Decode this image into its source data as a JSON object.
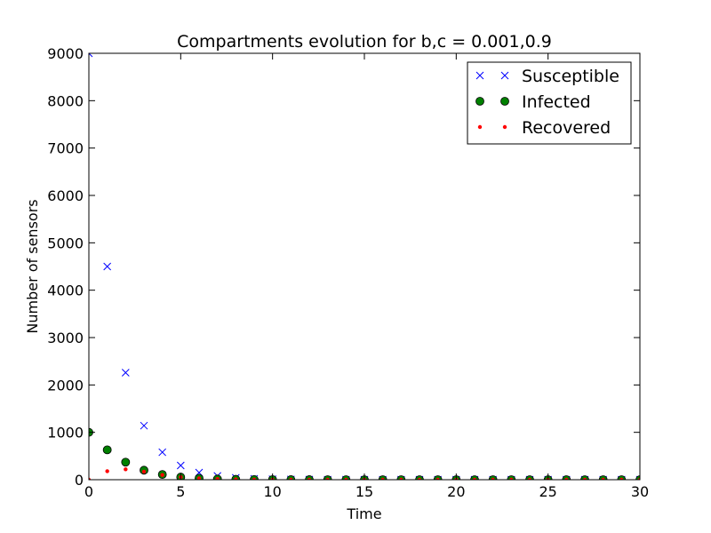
{
  "chart_data": {
    "type": "scatter",
    "title": "Compartments evolution for b,c = 0.001,0.9",
    "xlabel": "Time",
    "ylabel": "Number of sensors",
    "xlim": [
      0,
      30
    ],
    "ylim": [
      0,
      9000
    ],
    "xticks": [
      0,
      5,
      10,
      15,
      20,
      25,
      30
    ],
    "yticks": [
      0,
      1000,
      2000,
      3000,
      4000,
      5000,
      6000,
      7000,
      8000,
      9000
    ],
    "grid": false,
    "legend_position": "top-right",
    "x": [
      0,
      1,
      2,
      3,
      4,
      5,
      6,
      7,
      8,
      9,
      10,
      11,
      12,
      13,
      14,
      15,
      16,
      17,
      18,
      19,
      20,
      21,
      22,
      23,
      24,
      25,
      26,
      27,
      28,
      29,
      30
    ],
    "series": [
      {
        "name": "Susceptible",
        "marker": "x",
        "color": "#0000ff",
        "values": [
          9000,
          4500,
          2260,
          1140,
          580,
          300,
          150,
          80,
          40,
          20,
          10,
          5,
          3,
          1,
          1,
          0,
          0,
          0,
          0,
          0,
          0,
          0,
          0,
          0,
          0,
          0,
          0,
          0,
          0,
          0,
          0
        ]
      },
      {
        "name": "Infected",
        "marker": "o",
        "color": "#008000",
        "values": [
          1000,
          630,
          370,
          200,
          110,
          55,
          30,
          15,
          8,
          4,
          2,
          1,
          1,
          0,
          0,
          0,
          0,
          0,
          0,
          0,
          0,
          0,
          0,
          0,
          0,
          0,
          0,
          0,
          0,
          0,
          0
        ]
      },
      {
        "name": "Recovered",
        "marker": ".",
        "color": "#ff0000",
        "values": [
          0,
          180,
          220,
          170,
          100,
          55,
          30,
          15,
          8,
          4,
          2,
          1,
          1,
          0,
          0,
          0,
          0,
          0,
          0,
          0,
          0,
          0,
          0,
          0,
          0,
          0,
          0,
          0,
          0,
          0,
          0
        ]
      }
    ]
  }
}
